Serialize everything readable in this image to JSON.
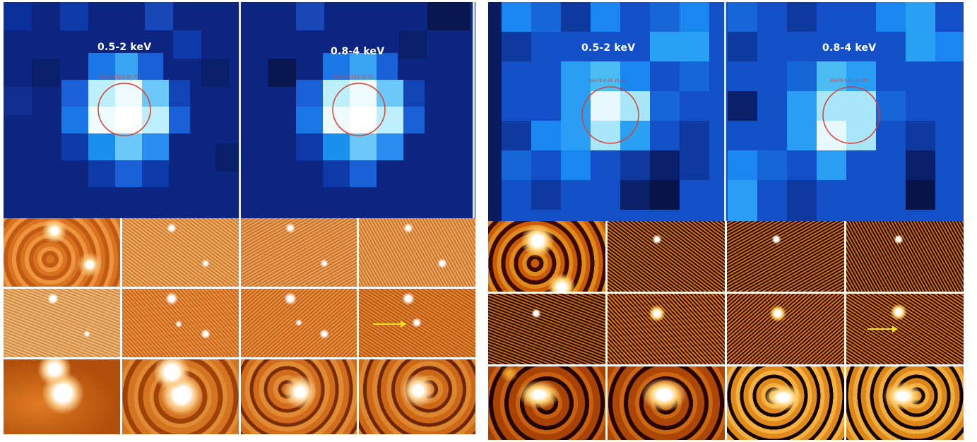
{
  "panels": [
    {
      "xray": {
        "bands": [
          "0.5-2 keV",
          "0.8-4 keV"
        ],
        "region_labels": [
          "26902 4.510 25.75",
          "26902 4.510 25.75"
        ],
        "colors": [
          "#0b1f73",
          "#1144b4",
          "#1a78e6",
          "#6cc8f8",
          "#eefcff"
        ]
      },
      "optical": {
        "rows": 3,
        "cols": 4,
        "colormap": "orange",
        "arrow_tile": "row2-col4"
      }
    },
    {
      "xray": {
        "bands": [
          "0.5-2 keV",
          "0.8-4 keV"
        ],
        "region_labels": [
          "26479 6.26 26.79",
          "26479 6.26 26.79"
        ],
        "colors": [
          "#0a1a5e",
          "#1350c8",
          "#1a86f0",
          "#4cbcf5",
          "#e8f8ff"
        ]
      },
      "optical": {
        "rows": 3,
        "cols": 4,
        "colormap": "hot",
        "arrow_tile": "row2-col4"
      }
    }
  ]
}
